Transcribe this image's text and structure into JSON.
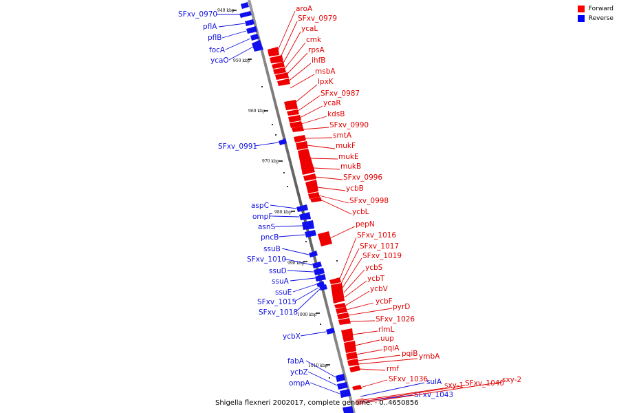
{
  "legend": {
    "forward_label": "Forward",
    "reverse_label": "Reverse",
    "forward_color": "#ff0000",
    "reverse_color": "#0000ff"
  },
  "caption": "Shigella flexneri 2002017, complete genome. - 0..4650856",
  "ticks": [
    "940 kbp",
    "950 kbp",
    "960 kbp",
    "970 kbp",
    "980 kbp",
    "990 kbp",
    "1000 kbp",
    "1010 kbp"
  ],
  "forward_genes": [
    "aroA",
    "SFxv_0979",
    "ycaL",
    "cmk",
    "rpsA",
    "ihfB",
    "msbA",
    "lpxK",
    "SFxv_0987",
    "ycaR",
    "kdsB",
    "SFxv_0990",
    "smtA",
    "mukF",
    "mukE",
    "mukB",
    "SFxv_0996",
    "ycbB",
    "SFxv_0998",
    "ycbL",
    "pepN",
    "SFxv_1016",
    "SFxv_1017",
    "SFxv_1019",
    "ycbS",
    "ycbT",
    "ycbV",
    "ycbF",
    "pyrD",
    "SFxv_1026",
    "rlmL",
    "uup",
    "pqiA",
    "pqiB",
    "ymbA",
    "rmf",
    "SFxv_1036",
    "sxy-1",
    "SFxv_1040",
    "sxy-2"
  ],
  "reverse_genes": [
    "SFxv_0970",
    "pflA",
    "pflB",
    "focA",
    "ycaO",
    "SFxv_0991",
    "aspC",
    "ompF",
    "asnS",
    "pncB",
    "ssuB",
    "SFxv_1010",
    "ssuD",
    "ssuA",
    "ssuE",
    "SFxv_1015",
    "SFxv_1018",
    "ycbX",
    "fabA",
    "ycbZ",
    "ompA",
    "sulA",
    "SFxv_1043"
  ]
}
